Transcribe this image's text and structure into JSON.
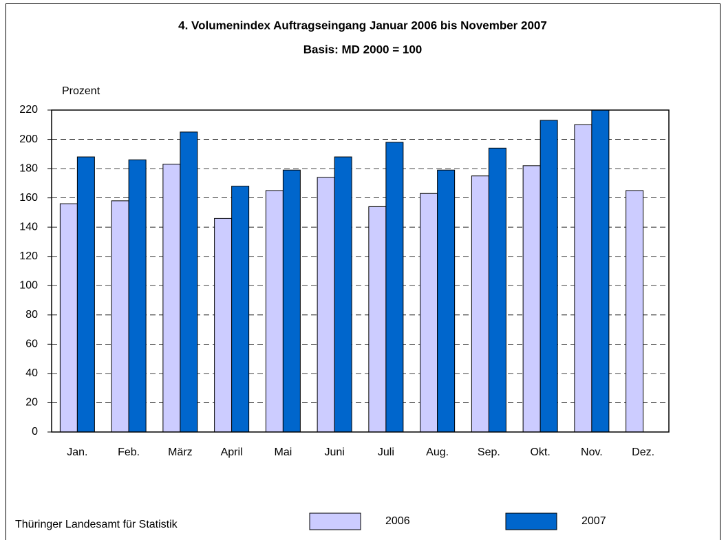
{
  "chart_data": {
    "type": "bar",
    "title": "4. Volumenindex Auftragseingang Januar 2006 bis November 2007",
    "subtitle": "Basis: MD 2000 = 100",
    "y_label": "Prozent",
    "source": "Thüringer Landesamt für Statistik",
    "categories": [
      "Jan.",
      "Feb.",
      "März",
      "April",
      "Mai",
      "Juni",
      "Juli",
      "Aug.",
      "Sep.",
      "Okt.",
      "Nov.",
      "Dez."
    ],
    "series": [
      {
        "name": "2006",
        "color": "#ccccff",
        "values": [
          156,
          158,
          183,
          146,
          165,
          174,
          154,
          163,
          175,
          182,
          210,
          165
        ]
      },
      {
        "name": "2007",
        "color": "#0066cc",
        "values": [
          188,
          186,
          205,
          168,
          179,
          188,
          198,
          179,
          194,
          213,
          220,
          null
        ]
      }
    ],
    "ylim": [
      0,
      220
    ],
    "yticks": [
      0,
      20,
      40,
      60,
      80,
      100,
      120,
      140,
      160,
      180,
      200,
      220
    ],
    "grid": true
  }
}
